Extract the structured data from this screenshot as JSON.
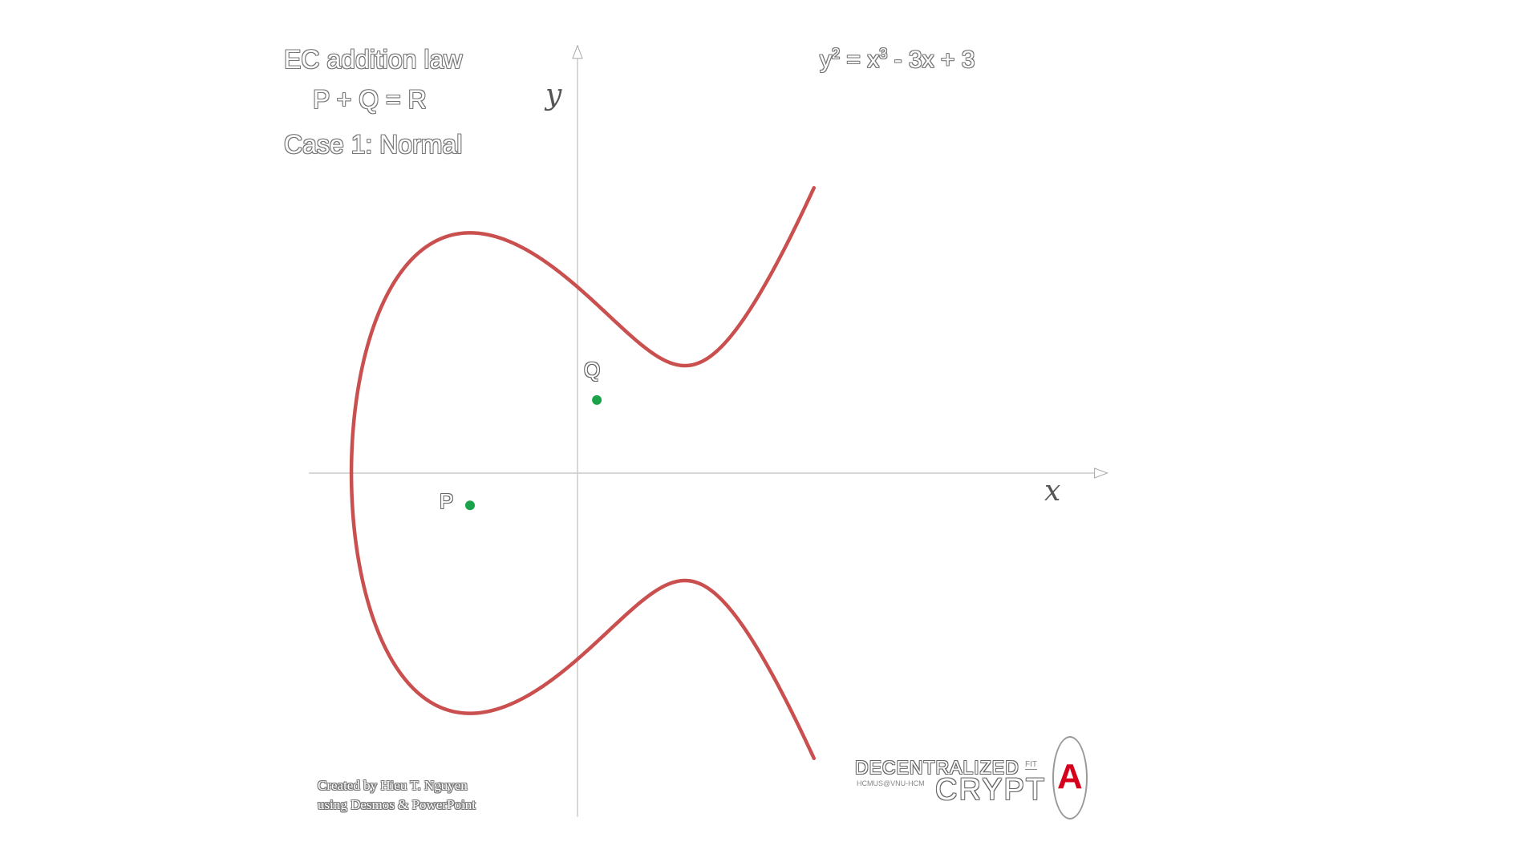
{
  "slide": {
    "title": "EC addition law",
    "law": "P + Q = R",
    "case": "Case 1: Normal",
    "credit_line1": "Created by Hieu T. Nguyen",
    "credit_line2": "using Desmos & PowerPoint"
  },
  "diagram": {
    "curve_equation": {
      "y": "y",
      "y_exp": "2",
      "eq": " = x",
      "x_exp": "3",
      "rest": " - 3x + 3"
    },
    "axes": {
      "x_name": "x",
      "y_name": "y",
      "x_range": [
        -2.5,
        4.9
      ],
      "y_range": [
        -3.2,
        3.95
      ]
    },
    "curve": {
      "a": -3,
      "b": 3,
      "color": "#c9504f"
    },
    "points": [
      {
        "label": "P",
        "x": -1.0,
        "y": -0.3,
        "color": "#1aa34a"
      },
      {
        "label": "Q",
        "x": 0.18,
        "y": 0.68,
        "color": "#1aa34a"
      }
    ]
  },
  "logo": {
    "line1": "DECENTRALIZED",
    "fit": "FIT",
    "sub": "HCMUS@VNU-HCM",
    "line2": "CRYPT",
    "letter": "A",
    "accent_color": "#d6001c"
  }
}
